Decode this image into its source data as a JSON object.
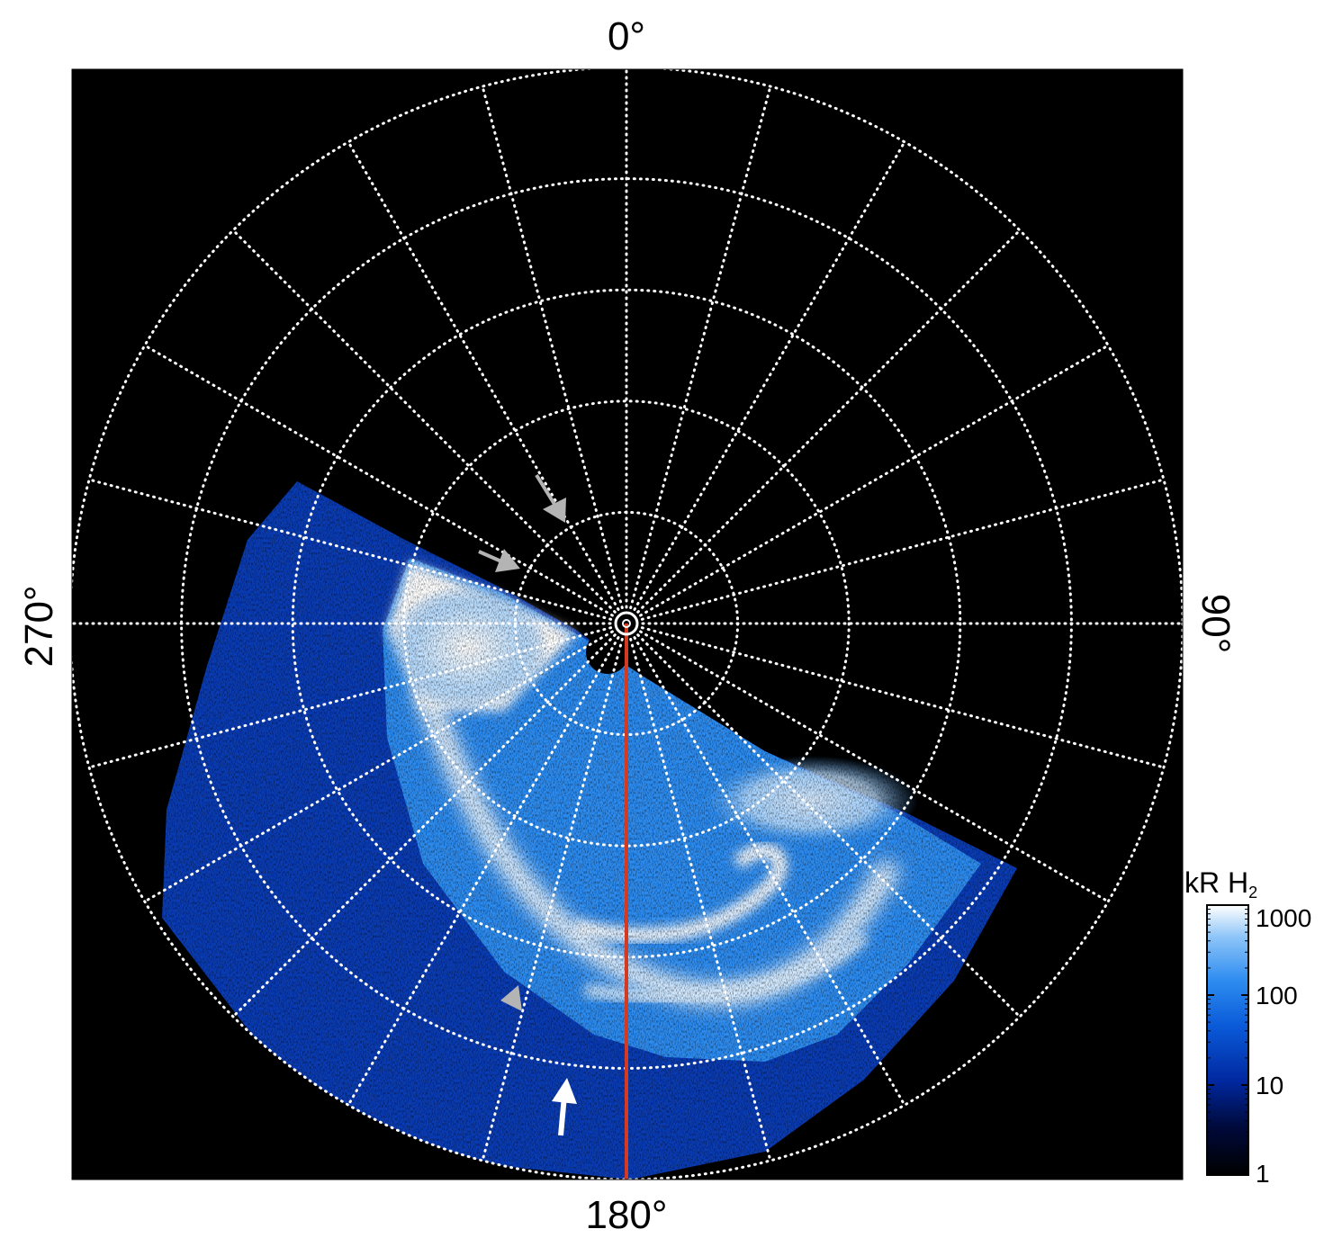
{
  "chart_data": {
    "type": "polar-image",
    "projection": "polar (azimuthal)",
    "angular_labels": [
      {
        "angle": 0,
        "text": "0°"
      },
      {
        "angle": 90,
        "text": "90°"
      },
      {
        "angle": 180,
        "text": "180°"
      },
      {
        "angle": 270,
        "text": "270°"
      }
    ],
    "meridian_step_deg": 15,
    "parallel_rings": 5,
    "grid": true,
    "grid_style": "white dotted",
    "highlighted_meridian_deg": 180,
    "highlight_color": "#d43a1f",
    "colorbar": {
      "label": "kR H",
      "label_subscript": "2",
      "scale": "log",
      "range": [
        1,
        1000
      ],
      "ticks": [
        {
          "value": 1,
          "text": "1"
        },
        {
          "value": 10,
          "text": "10"
        },
        {
          "value": 100,
          "text": "100"
        },
        {
          "value": 1000,
          "text": "1000"
        }
      ],
      "colors": [
        "#000000",
        "#000a3c",
        "#0028a0",
        "#0a5ad8",
        "#2d8cf0",
        "#8cc4f8",
        "#ffffff"
      ]
    },
    "arrows": [
      {
        "color": "gray",
        "count": 3
      },
      {
        "color": "white",
        "count": 1
      }
    ]
  }
}
